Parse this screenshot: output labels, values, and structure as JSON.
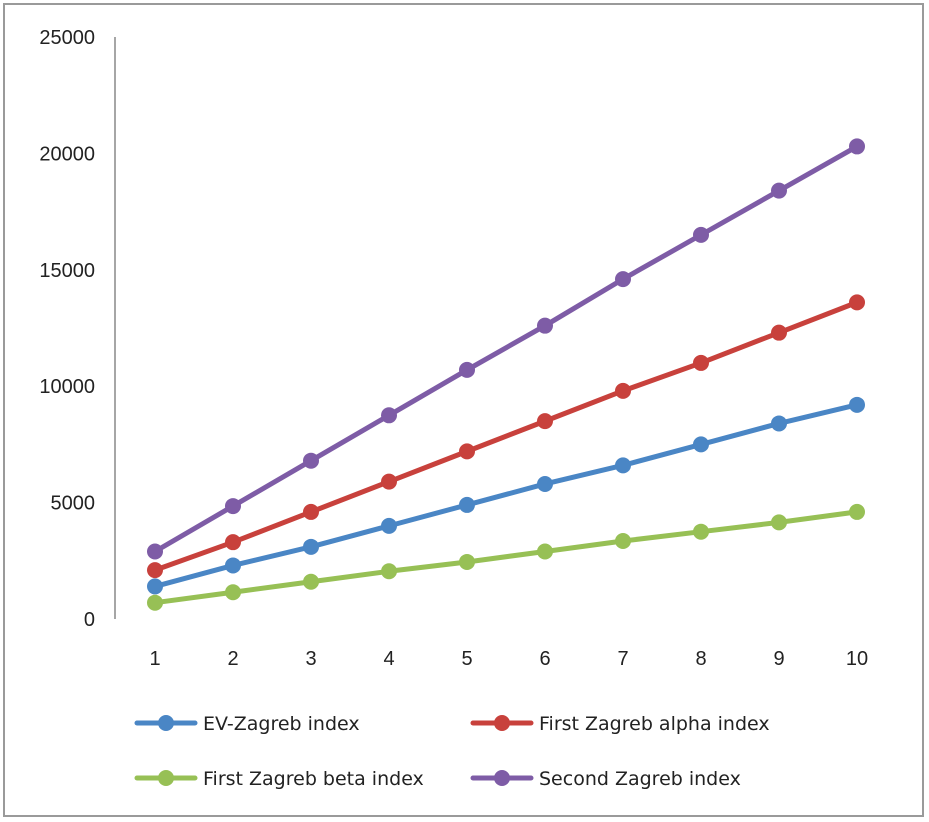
{
  "chart_data": {
    "type": "line",
    "title": "",
    "xlabel": "",
    "ylabel": "",
    "x": [
      1,
      2,
      3,
      4,
      5,
      6,
      7,
      8,
      9,
      10
    ],
    "ylim": [
      0,
      25000
    ],
    "yticks": [
      0,
      5000,
      10000,
      15000,
      20000,
      25000
    ],
    "ytick_labels": [
      "0",
      "5000",
      "10000",
      "15000",
      "20000",
      "25000"
    ],
    "xtick_labels": [
      "1",
      "2",
      "3",
      "4",
      "5",
      "6",
      "7",
      "8",
      "9",
      "10"
    ],
    "grid": false,
    "legend_position": "bottom",
    "series": [
      {
        "name": "EV-Zagreb index",
        "color": "#4a86c5",
        "values": [
          1400,
          2300,
          3100,
          4000,
          4900,
          5800,
          6600,
          7500,
          8400,
          9200
        ]
      },
      {
        "name": "First Zagreb alpha index",
        "color": "#c8413c",
        "values": [
          2100,
          3300,
          4600,
          5900,
          7200,
          8500,
          9800,
          11000,
          12300,
          13600
        ]
      },
      {
        "name": "First Zagreb beta index",
        "color": "#97c055",
        "values": [
          700,
          1150,
          1600,
          2050,
          2450,
          2900,
          3350,
          3750,
          4150,
          4600
        ]
      },
      {
        "name": "Second Zagreb index",
        "color": "#7e5ca6",
        "values": [
          2900,
          4850,
          6800,
          8750,
          10700,
          12600,
          14600,
          16500,
          18400,
          20300
        ]
      }
    ]
  }
}
